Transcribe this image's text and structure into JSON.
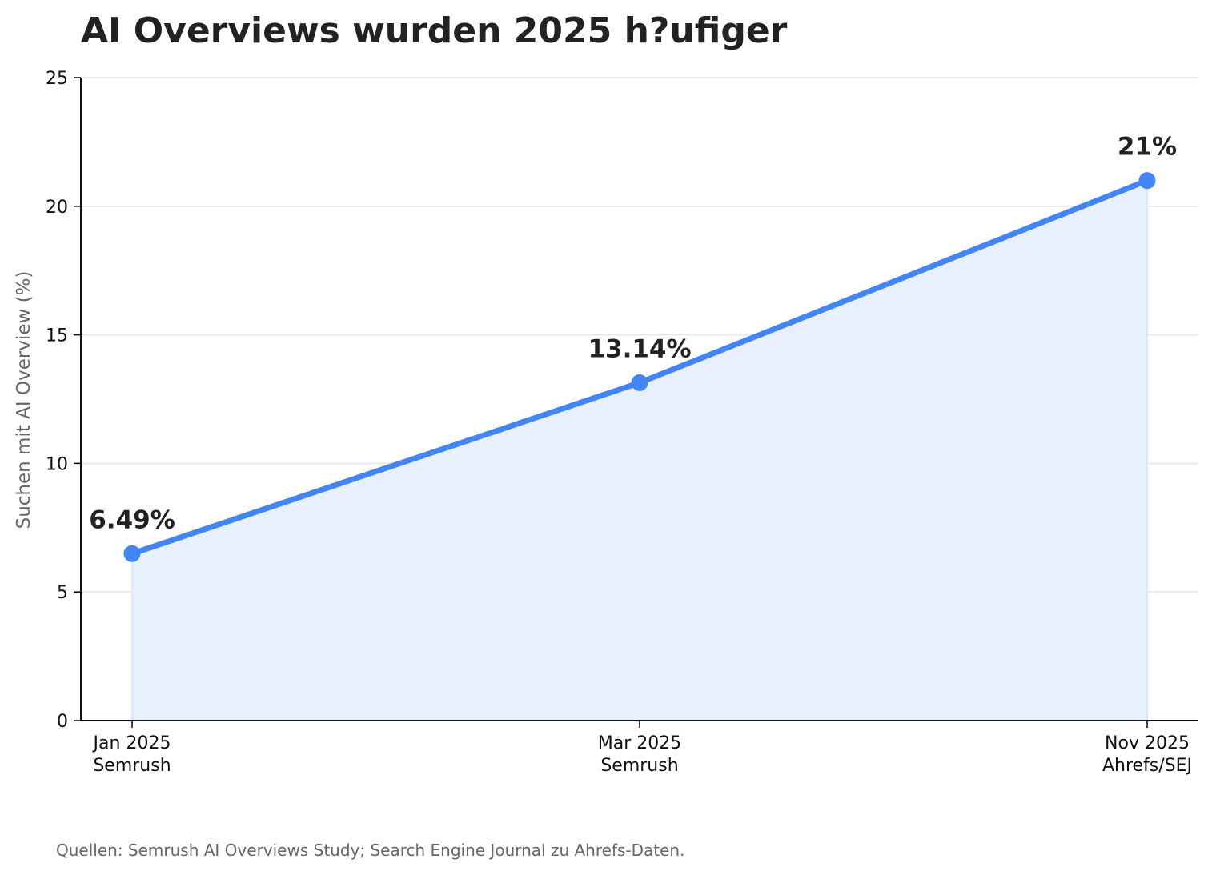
{
  "chart_data": {
    "type": "area",
    "title": "AI Overviews wurden 2025 h?ufiger",
    "ylabel": "Suchen mit AI Overview (%)",
    "xlabel": "",
    "ylim": [
      0,
      25
    ],
    "y_ticks": [
      "0",
      "5",
      "10",
      "15",
      "20",
      "25"
    ],
    "categories": [
      {
        "date": "Jan 2025",
        "source": "Semrush"
      },
      {
        "date": "Mar 2025",
        "source": "Semrush"
      },
      {
        "date": "Nov 2025",
        "source": "Ahrefs/SEJ"
      }
    ],
    "x_values": [
      "2025-01",
      "2025-03",
      "2025-11"
    ],
    "values": [
      6.49,
      13.14,
      21
    ],
    "data_labels": [
      "6.49%",
      "13.14%",
      "21%"
    ],
    "grid": "horizontal",
    "line_color": "#4285f4",
    "fill_color": "#e8f0fd",
    "source_note": "Quellen: Semrush AI Overviews Study; Search Engine Journal zu Ahrefs-Daten."
  }
}
